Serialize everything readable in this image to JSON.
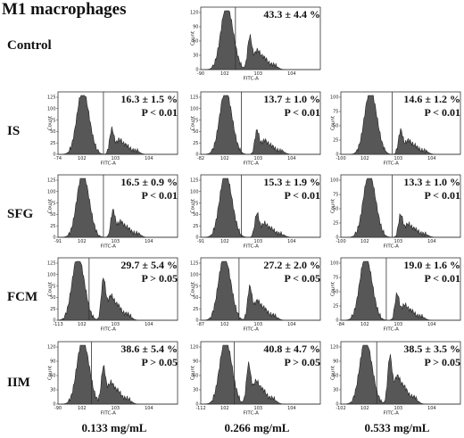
{
  "figure_title": "M1 macrophages",
  "row_labels": {
    "control": "Control",
    "is": "IS",
    "sfg": "SFG",
    "fcm": "FCM",
    "iim": "IIM"
  },
  "column_labels": [
    "0.133 mg/mL",
    "0.266 mg/mL",
    "0.533 mg/mL"
  ],
  "chart_data": {
    "type": "histogram-grid",
    "xlabel": "FITC-A",
    "ylabel": "Count",
    "panels": [
      {
        "row": "Control",
        "col": 1,
        "stat": "43.3 ± 4.4 %",
        "p": "",
        "yticks": [
          "0",
          "30",
          "60",
          "90",
          "120"
        ],
        "xmin": "-90",
        "first_peak": [
          0.21,
          1.0
        ],
        "second_peak": [
          0.41,
          0.55
        ],
        "gate": 0.29
      },
      {
        "row": "IS",
        "col": 0,
        "stat": "16.3 ± 1.5 %",
        "p": "P < 0.01",
        "yticks": [
          "0",
          "25",
          "50",
          "75",
          "100",
          "125"
        ],
        "xmin": "-74",
        "first_peak": [
          0.2,
          1.0
        ],
        "second_peak": [
          0.45,
          0.42
        ],
        "gate": 0.38
      },
      {
        "row": "IS",
        "col": 1,
        "stat": "13.7 ± 1.0 %",
        "p": "P < 0.01",
        "yticks": [
          "0",
          "25",
          "50",
          "75",
          "100",
          "125"
        ],
        "xmin": "-82",
        "first_peak": [
          0.2,
          1.0
        ],
        "second_peak": [
          0.47,
          0.4
        ],
        "gate": 0.34
      },
      {
        "row": "IS",
        "col": 2,
        "stat": "14.6 ± 1.2 %",
        "p": "P < 0.01",
        "yticks": [
          "0",
          "25",
          "50",
          "75",
          "100"
        ],
        "xmin": "-100",
        "first_peak": [
          0.24,
          1.0
        ],
        "second_peak": [
          0.5,
          0.4
        ],
        "gate": 0.43
      },
      {
        "row": "SFG",
        "col": 0,
        "stat": "16.5 ± 0.9 %",
        "p": "P < 0.01",
        "yticks": [
          "0",
          "25",
          "50",
          "75",
          "100",
          "125"
        ],
        "xmin": "-91",
        "first_peak": [
          0.2,
          1.0
        ],
        "second_peak": [
          0.46,
          0.45
        ],
        "gate": 0.38
      },
      {
        "row": "SFG",
        "col": 1,
        "stat": "15.3 ± 1.9 %",
        "p": "P < 0.01",
        "yticks": [
          "0",
          "25",
          "50",
          "75",
          "100",
          "125"
        ],
        "xmin": "-91",
        "first_peak": [
          0.2,
          1.0
        ],
        "second_peak": [
          0.47,
          0.4
        ],
        "gate": 0.34
      },
      {
        "row": "SFG",
        "col": 2,
        "stat": "13.3 ± 1.0 %",
        "p": "P < 0.01",
        "yticks": [
          "0",
          "25",
          "50",
          "75",
          "100"
        ],
        "xmin": "-100",
        "first_peak": [
          0.23,
          1.0
        ],
        "second_peak": [
          0.5,
          0.38
        ],
        "gate": 0.43
      },
      {
        "row": "FCM",
        "col": 0,
        "stat": "29.7 ± 5.4 %",
        "p": "P > 0.05",
        "yticks": [
          "0",
          "25",
          "50",
          "75",
          "100",
          "125"
        ],
        "xmin": "-113",
        "first_peak": [
          0.16,
          1.0
        ],
        "second_peak": [
          0.38,
          0.7
        ],
        "gate": 0.26
      },
      {
        "row": "FCM",
        "col": 1,
        "stat": "27.2 ± 2.0 %",
        "p": "P < 0.05",
        "yticks": [
          "0",
          "25",
          "50",
          "75",
          "100",
          "125"
        ],
        "xmin": "-87",
        "first_peak": [
          0.19,
          1.0
        ],
        "second_peak": [
          0.41,
          0.56
        ],
        "gate": 0.32
      },
      {
        "row": "FCM",
        "col": 2,
        "stat": "19.0 ± 1.6 %",
        "p": "P < 0.01",
        "yticks": [
          "0",
          "25",
          "50",
          "75",
          "100"
        ],
        "xmin": "-84",
        "first_peak": [
          0.2,
          1.0
        ],
        "second_peak": [
          0.47,
          0.44
        ],
        "gate": 0.38
      },
      {
        "row": "IIM",
        "col": 0,
        "stat": "38.6 ± 5.4 %",
        "p": "P > 0.05",
        "yticks": [
          "0",
          "30",
          "60",
          "90",
          "120"
        ],
        "xmin": "-90",
        "first_peak": [
          0.2,
          1.0
        ],
        "second_peak": [
          0.38,
          0.62
        ],
        "gate": 0.28
      },
      {
        "row": "IIM",
        "col": 1,
        "stat": "40.8 ± 4.7 %",
        "p": "P > 0.05",
        "yticks": [
          "0",
          "30",
          "60",
          "90",
          "120"
        ],
        "xmin": "-112",
        "first_peak": [
          0.2,
          1.0
        ],
        "second_peak": [
          0.4,
          0.66
        ],
        "gate": 0.28
      },
      {
        "row": "IIM",
        "col": 2,
        "stat": "38.5 ± 3.5 %",
        "p": "P > 0.05",
        "yticks": [
          "0",
          "30",
          "60",
          "90",
          "120"
        ],
        "xmin": "-102",
        "first_peak": [
          0.2,
          1.0
        ],
        "second_peak": [
          0.41,
          0.8
        ],
        "gate": 0.3
      }
    ]
  }
}
